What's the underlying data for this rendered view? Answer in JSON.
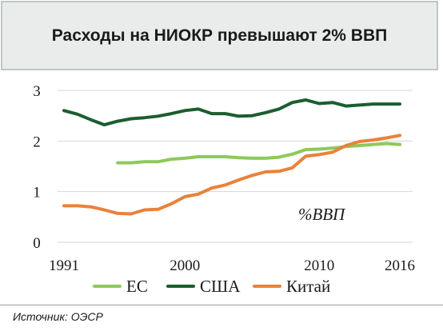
{
  "title": "Расходы на НИОКР превышают 2% ВВП",
  "source": "Источник: ОЭСР",
  "chart_data": {
    "type": "line",
    "title": "Расходы на НИОКР превышают 2% ВВП",
    "annotation": "%ВВП",
    "xlim": [
      1991,
      2016
    ],
    "ylim": [
      0,
      3
    ],
    "x_ticks": [
      1991,
      2000,
      2010,
      2016
    ],
    "y_ticks": [
      0,
      1,
      2,
      3
    ],
    "grid": true,
    "legend": "bottom",
    "series": [
      {
        "name": "ЕС",
        "color": "#8dc95a",
        "x": [
          1995,
          1996,
          1997,
          1998,
          1999,
          2000,
          2001,
          2002,
          2003,
          2004,
          2005,
          2006,
          2007,
          2008,
          2009,
          2010,
          2011,
          2012,
          2013,
          2014,
          2015,
          2016
        ],
        "y": [
          1.57,
          1.57,
          1.59,
          1.59,
          1.64,
          1.66,
          1.69,
          1.69,
          1.69,
          1.67,
          1.66,
          1.66,
          1.68,
          1.74,
          1.83,
          1.84,
          1.86,
          1.89,
          1.91,
          1.93,
          1.95,
          1.93
        ]
      },
      {
        "name": "США",
        "color": "#1b5e2f",
        "x": [
          1991,
          1992,
          1993,
          1994,
          1995,
          1996,
          1997,
          1998,
          1999,
          2000,
          2001,
          2002,
          2003,
          2004,
          2005,
          2006,
          2007,
          2008,
          2009,
          2010,
          2011,
          2012,
          2013,
          2014,
          2015,
          2016
        ],
        "y": [
          2.6,
          2.53,
          2.42,
          2.32,
          2.39,
          2.44,
          2.46,
          2.49,
          2.54,
          2.6,
          2.63,
          2.54,
          2.54,
          2.49,
          2.5,
          2.56,
          2.63,
          2.76,
          2.81,
          2.74,
          2.76,
          2.69,
          2.71,
          2.73,
          2.73,
          2.73
        ]
      },
      {
        "name": "Китай",
        "color": "#e8823a",
        "x": [
          1991,
          1992,
          1993,
          1994,
          1995,
          1996,
          1997,
          1998,
          1999,
          2000,
          2001,
          2002,
          2003,
          2004,
          2005,
          2006,
          2007,
          2008,
          2009,
          2010,
          2011,
          2012,
          2013,
          2014,
          2015,
          2016
        ],
        "y": [
          0.72,
          0.72,
          0.7,
          0.64,
          0.57,
          0.56,
          0.64,
          0.65,
          0.76,
          0.9,
          0.95,
          1.07,
          1.13,
          1.23,
          1.32,
          1.39,
          1.4,
          1.47,
          1.7,
          1.73,
          1.78,
          1.91,
          1.99,
          2.02,
          2.06,
          2.11
        ]
      }
    ]
  }
}
